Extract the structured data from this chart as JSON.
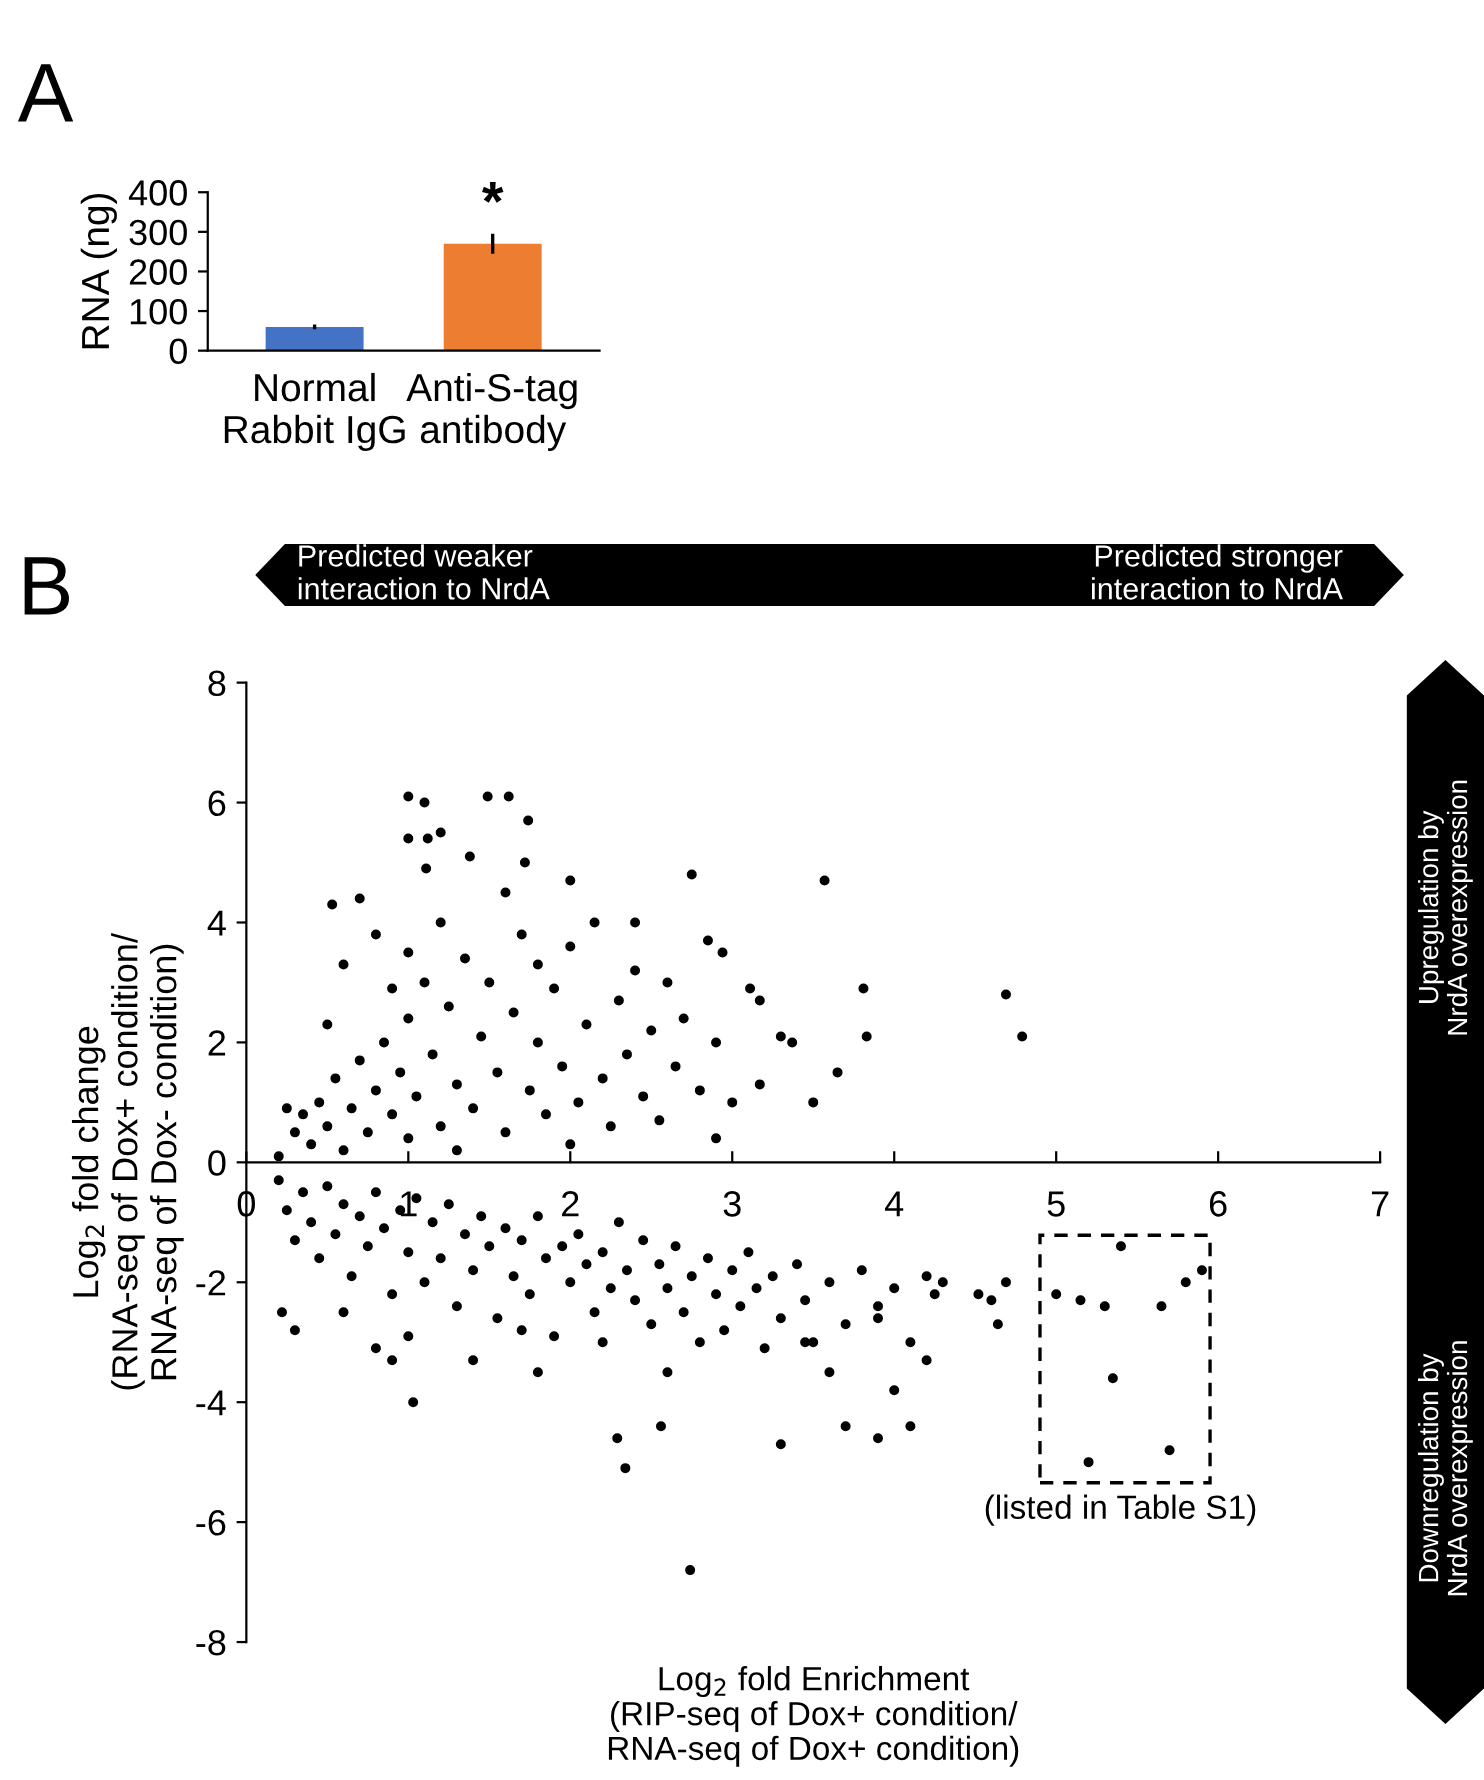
{
  "chart_data": [
    {
      "type": "bar",
      "title": "A",
      "ylabel": "RNA (ng)",
      "categories": [
        "Normal\nRabbit IgG",
        "Anti-S-tag\nantibody"
      ],
      "values": [
        60,
        270
      ],
      "errors": [
        6,
        25
      ],
      "colors": [
        "#4472c4",
        "#ed7d31"
      ],
      "ylim": [
        0,
        400
      ],
      "yticks": [
        0,
        100,
        200,
        300,
        400
      ],
      "grid": false,
      "annotations": [
        {
          "text": "*",
          "x": "Anti-S-tag\nantibody",
          "y": 300
        }
      ]
    },
    {
      "type": "scatter",
      "title": "B",
      "xlabel": "Log$_{2}$ fold Enrichment\n(RIP-seq of Dox+ condition/\nRNA-seq of Dox+ condition)",
      "ylabel": "Log$_{2}$ fold change\n(RNA-seq of Dox+ condition/\nRNA-seq of Dox- condition)",
      "xlim": [
        0,
        7
      ],
      "ylim": [
        -8,
        8
      ],
      "xticks": [
        0,
        1,
        2,
        3,
        4,
        5,
        6,
        7
      ],
      "yticks": [
        -8,
        -6,
        -4,
        -2,
        0,
        2,
        4,
        6,
        8
      ],
      "grid": false,
      "marker": "circle",
      "annotations": [
        "Predicted weaker\ninteraction to NrdA",
        "Predicted stronger\ninteraction to NrdA",
        "Upregulation by\nNrdA overexpression",
        "Downregulation by\nNrdA overexpression",
        "(listed in Table S1)"
      ],
      "series": [
        {
          "color": "#000000",
          "x": [
            0.2,
            0.3,
            0.35,
            0.4,
            0.45,
            0.5,
            0.55,
            0.6,
            0.65,
            0.7,
            0.75,
            0.8,
            0.85,
            0.9,
            0.95,
            1.0,
            1.0,
            1.05,
            1.1,
            1.15,
            1.2,
            1.25,
            1.3,
            1.35,
            1.4,
            1.45,
            1.5,
            1.55,
            1.6,
            1.65,
            1.7,
            1.75,
            1.8,
            1.85,
            1.9,
            1.95,
            2.0,
            2.05,
            2.1,
            2.15,
            2.2,
            2.25,
            2.3,
            2.35,
            2.4,
            2.45,
            2.5,
            2.55,
            2.6,
            2.65,
            2.7,
            2.8,
            2.85,
            2.9,
            0.6,
            0.8,
            1.2,
            1.6,
            2.0,
            0.5,
            0.9,
            2.4,
            1.3,
            2.0,
            2.9,
            3.3,
            3.5,
            3.0,
            0.25,
            1.0,
            1.8,
            1.0,
            1.1,
            1.49,
            1.62,
            1.74,
            1.0,
            1.12,
            1.2,
            1.38,
            1.11,
            1.72,
            0.53,
            0.7,
            2.75,
            3.57,
            4.69,
            4.79,
            3.83,
            3.37,
            3.11,
            3.17,
            3.81,
            2.94,
            3.17,
            3.65,
            0.2,
            0.25,
            0.3,
            0.35,
            0.4,
            0.45,
            0.5,
            0.55,
            0.6,
            0.65,
            0.7,
            0.75,
            0.8,
            0.85,
            0.9,
            0.95,
            1.0,
            1.05,
            1.1,
            1.15,
            1.2,
            1.25,
            1.3,
            1.35,
            1.4,
            1.45,
            1.5,
            1.55,
            1.6,
            1.65,
            1.7,
            1.75,
            1.8,
            1.85,
            1.9,
            1.95,
            2.0,
            2.05,
            2.1,
            2.15,
            2.2,
            2.25,
            2.3,
            2.35,
            2.4,
            2.45,
            2.5,
            2.55,
            2.6,
            2.65,
            2.7,
            2.75,
            2.8,
            2.85,
            2.9,
            2.95,
            3.0,
            3.05,
            3.1,
            3.15,
            3.2,
            3.25,
            3.3,
            3.4,
            3.45,
            3.5,
            3.6,
            3.7,
            3.8,
            3.9,
            4.0,
            4.1,
            4.2,
            0.3,
            0.6,
            0.8,
            1.0,
            1.4,
            1.8,
            2.2,
            2.6,
            0.9,
            1.7,
            0.22,
            1.03,
            2.29,
            2.34,
            2.56,
            2.74,
            3.7,
            3.9,
            4.1,
            3.3,
            4.2,
            4.0,
            3.6,
            3.45,
            4.25,
            4.3,
            3.9,
            4.52,
            4.6,
            4.64,
            4.69,
            5.0,
            5.15,
            5.3,
            5.4,
            5.35,
            5.2,
            5.7,
            5.65,
            5.8,
            5.9
          ],
          "values": [
            0.1,
            0.5,
            0.8,
            0.3,
            1.0,
            0.6,
            1.4,
            0.2,
            0.9,
            1.7,
            0.5,
            1.2,
            2.0,
            0.8,
            1.5,
            0.4,
            2.4,
            1.1,
            3.0,
            1.8,
            0.6,
            2.6,
            1.3,
            3.4,
            0.9,
            2.1,
            3.0,
            1.5,
            0.5,
            2.5,
            3.8,
            1.2,
            2.0,
            0.8,
            2.9,
            1.6,
            3.6,
            1.0,
            2.3,
            4.0,
            1.4,
            0.6,
            2.7,
            1.8,
            3.2,
            1.1,
            2.2,
            0.7,
            3.0,
            1.6,
            2.4,
            1.2,
            3.7,
            2.0,
            3.3,
            3.8,
            4.0,
            4.5,
            4.7,
            2.3,
            2.9,
            4.0,
            0.2,
            0.3,
            0.4,
            2.1,
            1.0,
            1.0,
            0.9,
            3.5,
            3.3,
            6.1,
            6.0,
            6.1,
            6.1,
            5.7,
            5.4,
            5.4,
            5.5,
            5.1,
            4.9,
            5.0,
            4.3,
            4.4,
            4.8,
            4.7,
            2.8,
            2.1,
            2.1,
            2.0,
            2.9,
            2.7,
            2.9,
            3.5,
            1.3,
            1.5,
            -0.3,
            -0.8,
            -1.3,
            -0.5,
            -1.0,
            -1.6,
            -0.4,
            -1.2,
            -0.7,
            -1.9,
            -0.9,
            -1.4,
            -0.5,
            -1.1,
            -2.2,
            -0.8,
            -1.5,
            -0.6,
            -2.0,
            -1.0,
            -1.6,
            -0.7,
            -2.4,
            -1.2,
            -1.8,
            -0.9,
            -1.4,
            -2.6,
            -1.1,
            -1.9,
            -1.3,
            -2.2,
            -0.9,
            -1.6,
            -2.9,
            -1.4,
            -2.0,
            -1.2,
            -1.7,
            -2.5,
            -1.5,
            -2.1,
            -1.0,
            -1.8,
            -2.3,
            -1.3,
            -2.7,
            -1.7,
            -2.1,
            -1.4,
            -2.5,
            -1.9,
            -3.0,
            -1.6,
            -2.2,
            -2.8,
            -1.8,
            -2.4,
            -1.5,
            -2.1,
            -3.1,
            -1.9,
            -2.6,
            -1.7,
            -2.3,
            -3.0,
            -2.0,
            -2.7,
            -1.8,
            -2.4,
            -2.1,
            -3.0,
            -1.9,
            -2.8,
            -2.5,
            -3.1,
            -2.9,
            -3.3,
            -3.5,
            -3.0,
            -3.5,
            -3.3,
            -2.8,
            -2.5,
            -4.0,
            -4.6,
            -5.1,
            -4.4,
            -6.8,
            -4.4,
            -4.6,
            -4.4,
            -4.7,
            -3.3,
            -3.8,
            -3.5,
            -3.0,
            -2.2,
            -2.0,
            -2.6,
            -2.2,
            -2.3,
            -2.7,
            -2.0,
            -2.2,
            -2.3,
            -2.4,
            -1.4,
            -3.6,
            -5.0,
            -4.8,
            -2.4,
            -2.0,
            -1.8
          ]
        }
      ]
    }
  ]
}
